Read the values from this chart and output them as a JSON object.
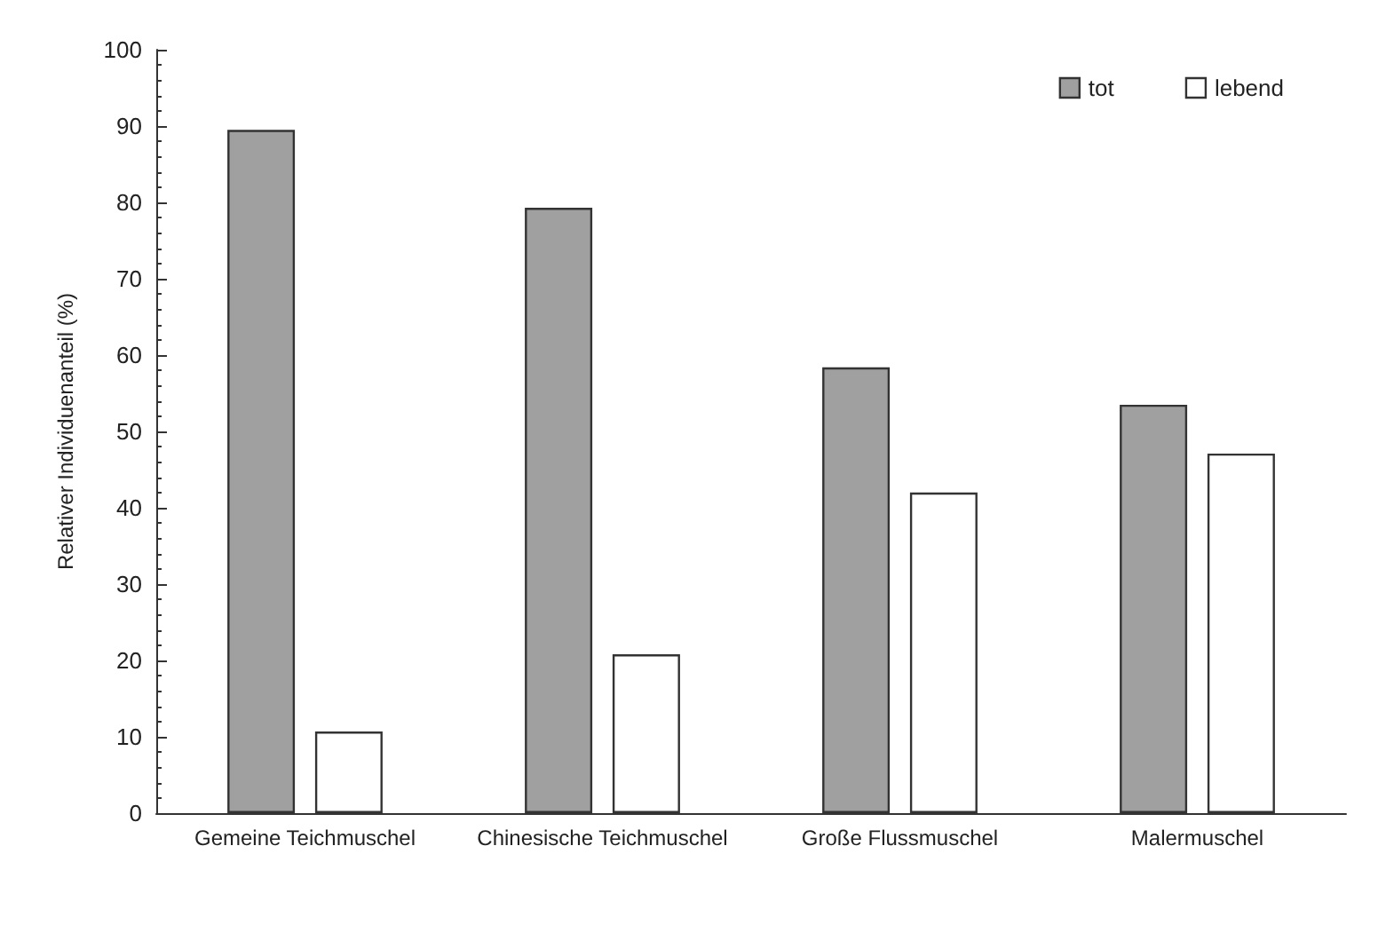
{
  "chart_data": {
    "type": "bar",
    "ylabel": "Relativer Individuenanteil (%)",
    "categories": [
      "Gemeine Teichmuschel",
      "Chinesische Teichmuschel",
      "Große Flussmuschel",
      "Malermuschel"
    ],
    "series": [
      {
        "name": "tot",
        "color": "#a0a0a0",
        "values": [
          89.5,
          79.3,
          58.4,
          53.5
        ]
      },
      {
        "name": "lebend",
        "color": "#ffffff",
        "values": [
          10.7,
          20.8,
          42.0,
          47.1
        ]
      }
    ],
    "ylim": [
      0,
      100
    ],
    "yticks": [
      0,
      10,
      20,
      30,
      40,
      50,
      60,
      70,
      80,
      90,
      100
    ],
    "grid": false,
    "legend": "top right"
  }
}
